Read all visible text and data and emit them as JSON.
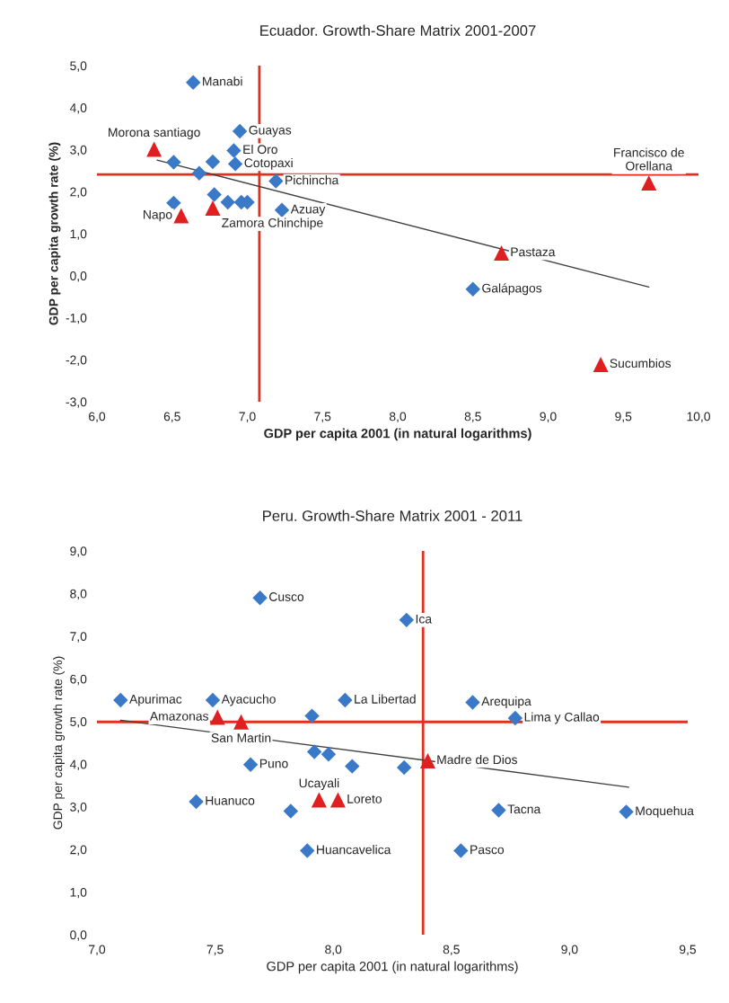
{
  "chart_data": [
    {
      "type": "scatter",
      "title": "Ecuador. Growth-Share Matrix 2001-2007",
      "xlabel": "GDP per capita 2001 (in natural logarithms)",
      "ylabel": "GDP per capita growth rate (%)",
      "xlim": [
        6.0,
        10.0
      ],
      "ylim": [
        -3.0,
        5.0
      ],
      "xticks": [
        {
          "value": 6,
          "label": "6,0"
        },
        {
          "value": 6.5,
          "label": "6,5"
        },
        {
          "value": 7,
          "label": "7,0"
        },
        {
          "value": 7.5,
          "label": "7,5"
        },
        {
          "value": 8,
          "label": "8,0"
        },
        {
          "value": 8.5,
          "label": "8,5"
        },
        {
          "value": 9,
          "label": "9,0"
        },
        {
          "value": 9.5,
          "label": "9,5"
        },
        {
          "value": 10,
          "label": "10,0"
        }
      ],
      "yticks": [
        {
          "value": -3,
          "label": "-3,0"
        },
        {
          "value": -2,
          "label": "-2,0"
        },
        {
          "value": -1,
          "label": "-1,0"
        },
        {
          "value": 0,
          "label": "0,0"
        },
        {
          "value": 1,
          "label": "1,0"
        },
        {
          "value": 2,
          "label": "2,0"
        },
        {
          "value": 3,
          "label": "3,0"
        },
        {
          "value": 4,
          "label": "4,0"
        },
        {
          "value": 5,
          "label": "5,0"
        }
      ],
      "series": [
        {
          "type": "scatter",
          "marker": "diamond",
          "color": "#3a78c8",
          "x": [
            6.64,
            6.95,
            6.91,
            6.92,
            6.51,
            6.68,
            6.77,
            7.19,
            6.51,
            6.78,
            6.87,
            6.96,
            7.0,
            7.23,
            8.5
          ],
          "values": [
            4.6,
            3.44,
            2.98,
            2.66,
            2.7,
            2.44,
            2.71,
            2.25,
            1.73,
            1.93,
            1.75,
            1.75,
            1.75,
            1.56,
            -0.32
          ]
        },
        {
          "type": "scatter",
          "marker": "triangle",
          "color": "#e02020",
          "x": [
            6.38,
            6.56,
            6.77,
            9.67,
            8.69,
            9.35
          ],
          "values": [
            3.01,
            1.43,
            1.61,
            2.21,
            0.54,
            -2.11
          ]
        },
        {
          "type": "line",
          "color": "#404040",
          "x": [
            6.4,
            9.67
          ],
          "values": [
            2.75,
            -0.27
          ]
        }
      ],
      "ref_lines": [
        {
          "axis": "x",
          "value": 7.08,
          "color": "#e03020"
        },
        {
          "axis": "y",
          "value": 2.41,
          "color": "#e03020"
        }
      ],
      "annotations": [
        {
          "text": "Manabi",
          "x": 6.64,
          "y": 4.6
        },
        {
          "text": "Guayas",
          "x": 6.95,
          "y": 3.44
        },
        {
          "text": "El Oro",
          "x": 6.91,
          "y": 2.98
        },
        {
          "text": "Cotopaxi",
          "x": 6.92,
          "y": 2.66
        },
        {
          "text": "Pichincha",
          "x": 7.19,
          "y": 2.25
        },
        {
          "text": "Azuay",
          "x": 7.23,
          "y": 1.56
        },
        {
          "text": "Galápagos",
          "x": 8.5,
          "y": -0.32
        },
        {
          "text": "Morona santiago",
          "x": 6.38,
          "y": 3.01
        },
        {
          "text": "Napo",
          "x": 6.56,
          "y": 1.43
        },
        {
          "text": "Zamora Chinchipe",
          "x": 6.77,
          "y": 1.61
        },
        {
          "text": "Francisco de\nOrellana",
          "x": 9.67,
          "y": 2.21
        },
        {
          "text": "Pastaza",
          "x": 8.69,
          "y": 0.54
        },
        {
          "text": "Sucumbios",
          "x": 9.35,
          "y": -2.11
        }
      ]
    },
    {
      "type": "scatter",
      "title": "Peru. Growth-Share Matrix 2001 - 2011",
      "xlabel": "GDP per capita 2001 (in natural logarithms)",
      "ylabel": "GDP per capita growth rate (%)",
      "xlim": [
        7.0,
        9.5
      ],
      "ylim": [
        0.0,
        9.0
      ],
      "xticks": [
        {
          "value": 7,
          "label": "7,0"
        },
        {
          "value": 7.5,
          "label": "7,5"
        },
        {
          "value": 8,
          "label": "8,0"
        },
        {
          "value": 8.5,
          "label": "8,5"
        },
        {
          "value": 9,
          "label": "9,0"
        },
        {
          "value": 9.5,
          "label": "9,5"
        }
      ],
      "yticks": [
        {
          "value": 0,
          "label": "0,0"
        },
        {
          "value": 1,
          "label": "1,0"
        },
        {
          "value": 2,
          "label": "2,0"
        },
        {
          "value": 3,
          "label": "3,0"
        },
        {
          "value": 4,
          "label": "4,0"
        },
        {
          "value": 5,
          "label": "5,0"
        },
        {
          "value": 6,
          "label": "6,0"
        },
        {
          "value": 7,
          "label": "7,0"
        },
        {
          "value": 8,
          "label": "8,0"
        },
        {
          "value": 9,
          "label": "9,0"
        }
      ],
      "series": [
        {
          "type": "scatter",
          "marker": "diamond",
          "color": "#3a78c8",
          "x": [
            7.1,
            7.49,
            7.69,
            8.31,
            8.05,
            7.91,
            7.92,
            7.98,
            8.08,
            8.3,
            7.65,
            7.42,
            7.82,
            7.89,
            8.59,
            8.77,
            8.7,
            9.24,
            8.54
          ],
          "values": [
            5.5,
            5.5,
            7.9,
            7.38,
            5.5,
            5.13,
            4.29,
            4.23,
            3.95,
            3.92,
            3.99,
            3.12,
            2.9,
            1.97,
            5.45,
            5.08,
            2.92,
            2.88,
            1.97
          ]
        },
        {
          "type": "scatter",
          "marker": "triangle",
          "color": "#e02020",
          "x": [
            7.51,
            7.61,
            7.94,
            8.02,
            8.4
          ],
          "values": [
            5.1,
            4.99,
            3.16,
            3.16,
            4.08
          ]
        },
        {
          "type": "line",
          "color": "#404040",
          "x": [
            7.1,
            9.25
          ],
          "values": [
            5.03,
            3.46
          ]
        }
      ],
      "ref_lines": [
        {
          "axis": "x",
          "value": 8.38,
          "color": "#e03020"
        },
        {
          "axis": "y",
          "value": 4.99,
          "color": "#e03020"
        }
      ],
      "annotations": [
        {
          "text": "Apurimac",
          "x": 7.1,
          "y": 5.5
        },
        {
          "text": "Ayacucho",
          "x": 7.49,
          "y": 5.5
        },
        {
          "text": "Cusco",
          "x": 7.69,
          "y": 7.9
        },
        {
          "text": "Ica",
          "x": 8.31,
          "y": 7.38
        },
        {
          "text": "La Libertad",
          "x": 8.05,
          "y": 5.5
        },
        {
          "text": "Puno",
          "x": 7.65,
          "y": 3.99
        },
        {
          "text": "Huanuco",
          "x": 7.42,
          "y": 3.12
        },
        {
          "text": "Huancavelica",
          "x": 7.89,
          "y": 1.97
        },
        {
          "text": "Arequipa",
          "x": 8.59,
          "y": 5.45
        },
        {
          "text": "Lima y Callao",
          "x": 8.77,
          "y": 5.08
        },
        {
          "text": "Tacna",
          "x": 8.7,
          "y": 2.92
        },
        {
          "text": "Moquehua",
          "x": 9.24,
          "y": 2.88
        },
        {
          "text": "Pasco",
          "x": 8.54,
          "y": 1.97
        },
        {
          "text": "Amazonas",
          "x": 7.51,
          "y": 5.1
        },
        {
          "text": "San Martin",
          "x": 7.61,
          "y": 4.99
        },
        {
          "text": "Ucayali",
          "x": 7.94,
          "y": 3.16
        },
        {
          "text": "Loreto",
          "x": 8.02,
          "y": 3.16
        },
        {
          "text": "Madre de Dios",
          "x": 8.4,
          "y": 4.08
        }
      ]
    }
  ]
}
